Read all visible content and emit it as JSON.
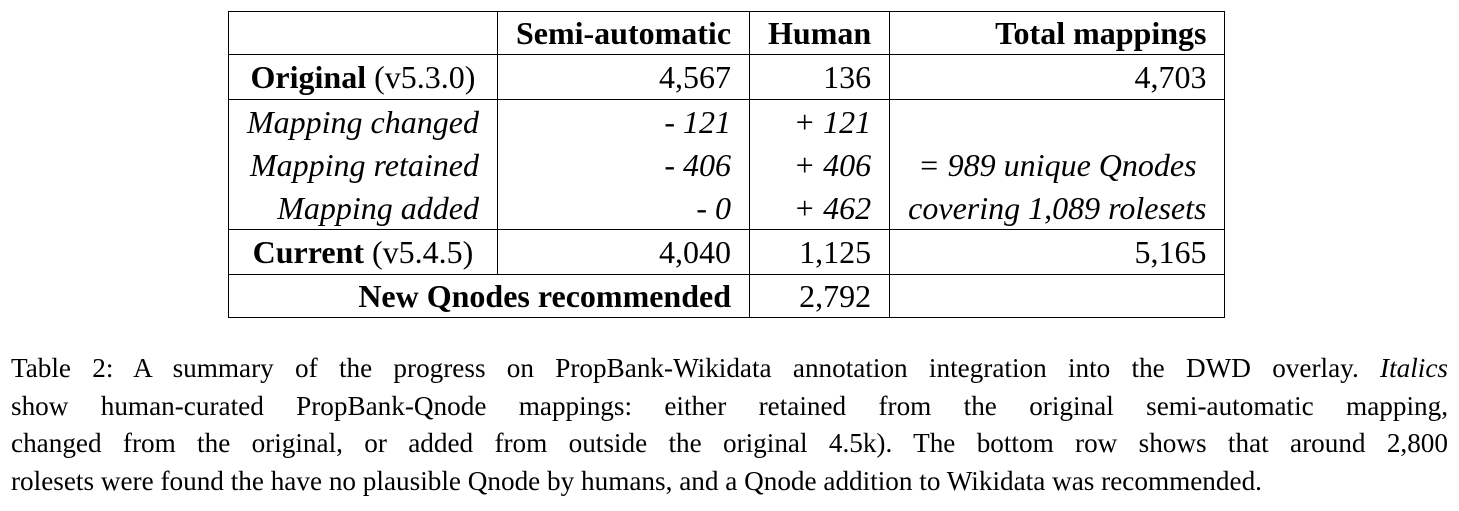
{
  "table": {
    "header": {
      "col1": "",
      "col2": "Semi-automatic",
      "col3": "Human",
      "col4": "Total mappings"
    },
    "original": {
      "label_bold": "Original",
      "label_version": "(v5.3.0)",
      "semi": "4,567",
      "human": "136",
      "total": "4,703"
    },
    "sub_rows": [
      {
        "label": "Mapping changed",
        "semi": "- 121",
        "human": "+ 121",
        "total": ""
      },
      {
        "label": "Mapping retained",
        "semi": "- 406",
        "human": "+ 406",
        "total": "= 989 unique Qnodes"
      },
      {
        "label": "Mapping added",
        "semi": "- 0",
        "human": "+ 462",
        "total": "covering 1,089 rolesets"
      }
    ],
    "current": {
      "label_bold": "Current",
      "label_version": "(v5.4.5)",
      "semi": "4,040",
      "human": "1,125",
      "total": "5,165"
    },
    "recommended": {
      "label": "New Qnodes recommended",
      "human": "2,792",
      "total": ""
    }
  },
  "caption": {
    "line1_a": "Table 2: A summary of the progress on PropBank-Wikidata annotation integration into the DWD overlay.",
    "line1_italic": "Italics",
    "line2": "show human-curated PropBank-Qnode mappings: either retained from the original semi-automatic mapping,",
    "line3": "changed from the original, or added from outside the original 4.5k). The bottom row shows that around 2,800",
    "line4": "rolesets were found the have no plausible Qnode by humans, and a Qnode addition to Wikidata was recommended."
  }
}
